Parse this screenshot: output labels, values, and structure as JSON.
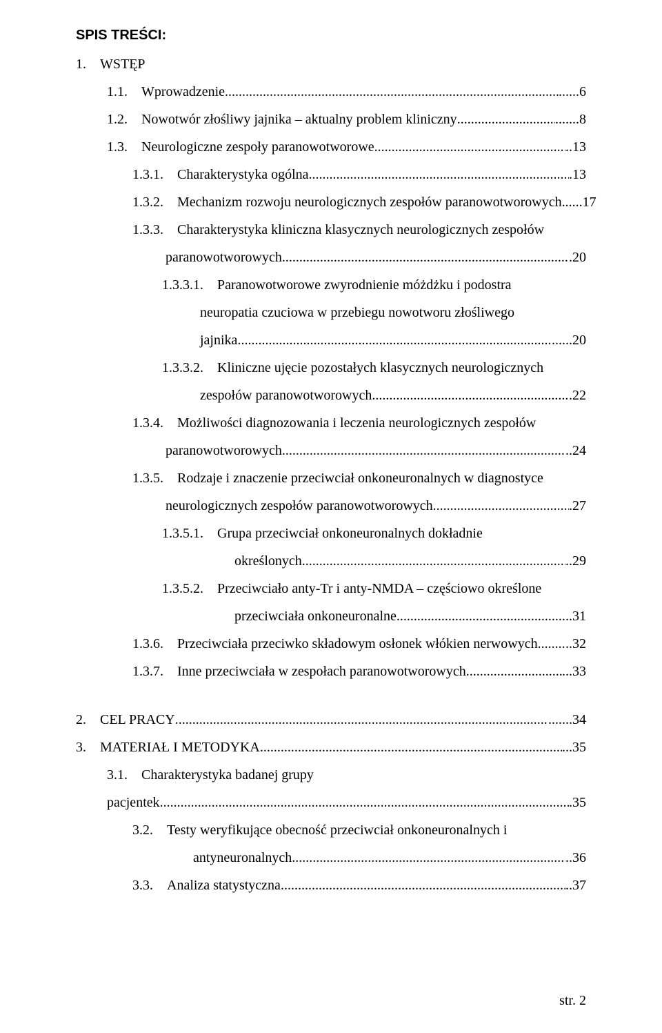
{
  "heading": "SPIS TREŚCI:",
  "colors": {
    "text": "#000000",
    "background": "#ffffff"
  },
  "fonts": {
    "heading_family": "Arial",
    "body_family": "Times New Roman",
    "body_size_pt": 15
  },
  "footer": "str. 2",
  "entries": [
    {
      "indent": "lvl1",
      "num": "1.",
      "text": "WSTĘP",
      "leader": "",
      "page": ""
    },
    {
      "indent": "lvl2",
      "num": "1.1.",
      "text": "Wprowadzenie",
      "leader": "...",
      "page": "......6"
    },
    {
      "indent": "lvl2",
      "num": "1.2.",
      "text": "Nowotwór złośliwy jajnika – aktualny problem kliniczny",
      "leader": ".",
      "page": ".......8"
    },
    {
      "indent": "lvl2",
      "num": "1.3.",
      "text": "Neurologiczne zespoły paranowotworowe",
      "leader": ".",
      "page": "..13"
    },
    {
      "indent": "lvl3",
      "num": "1.3.1.",
      "text": "Charakterystyka ogólna",
      "leader": ".",
      "page": ".13"
    },
    {
      "indent": "lvl3",
      "num": "1.3.2.",
      "text": "Mechanizm rozwoju neurologicznych zespołów paranowotworowych",
      "leader": ".",
      "page": "......17"
    },
    {
      "indent": "lvl3",
      "num": "1.3.3.",
      "text": "Charakterystyka kliniczna klasycznych neurologicznych zespołów",
      "leader": "",
      "page": ""
    },
    {
      "indent": "cont-lvl3",
      "num": "",
      "text": "paranowotworowych",
      "leader": ".",
      "page": ".20"
    },
    {
      "indent": "lvl4",
      "num": "1.3.3.1.",
      "text": "Paranowotworowe zwyrodnienie móżdżku i podostra",
      "leader": "",
      "page": ""
    },
    {
      "indent": "lvl5",
      "num": "",
      "text": "neuropatia czuciowa w przebiegu nowotworu złośliwego",
      "leader": "",
      "page": ""
    },
    {
      "indent": "lvl5",
      "num": "",
      "text": "jajnika",
      "leader": ".",
      "page": "......20"
    },
    {
      "indent": "lvl4",
      "num": "1.3.3.2.",
      "text": "Kliniczne ujęcie pozostałych klasycznych neurologicznych",
      "leader": "",
      "page": ""
    },
    {
      "indent": "lvl5",
      "num": "",
      "text": "zespołów paranowotworowych",
      "leader": ".",
      "page": ".22"
    },
    {
      "indent": "lvl3",
      "num": "1.3.4.",
      "text": "Możliwości diagnozowania i leczenia neurologicznych zespołów",
      "leader": "",
      "page": ""
    },
    {
      "indent": "cont-lvl3",
      "num": "",
      "text": "paranowotworowych",
      "leader": ".",
      "page": "..24"
    },
    {
      "indent": "lvl3",
      "num": "1.3.5.",
      "text": "Rodzaje i znaczenie przeciwciał onkoneuronalnych w diagnostyce",
      "leader": "",
      "page": ""
    },
    {
      "indent": "cont-lvl3",
      "num": "",
      "text": "neurologicznych zespołów paranowotworowych",
      "leader": ".",
      "page": ".27"
    },
    {
      "indent": "lvl4",
      "num": "1.3.5.1.",
      "text": "Grupa przeciwciał onkoneuronalnych dokładnie",
      "leader": "",
      "page": ""
    },
    {
      "indent": "cont-lvl5",
      "num": "",
      "text": "określonych",
      "leader": ".",
      "page": "..29"
    },
    {
      "indent": "lvl4",
      "num": "1.3.5.2.",
      "text": "Przeciwciało anty-Tr i anty-NMDA – częściowo określone",
      "leader": "",
      "page": ""
    },
    {
      "indent": "cont-lvl5",
      "num": "",
      "text": "przeciwciała onkoneuronalne",
      "leader": ".",
      "page": "..31"
    },
    {
      "indent": "lvl3",
      "num": "1.3.6.",
      "text": "Przeciwciała przeciwko składowym osłonek włókien nerwowych",
      "leader": ".",
      "page": "..32"
    },
    {
      "indent": "lvl3",
      "num": "1.3.7.",
      "text": "Inne przeciwciała w zespołach paranowotworowych",
      "leader": ".",
      "page": "...33"
    },
    {
      "gap": true
    },
    {
      "indent": "lvl1",
      "num": "2.",
      "text": "CEL PRACY",
      "leader": ".",
      "page": ".......34"
    },
    {
      "indent": "lvl1",
      "num": "3.",
      "text": "MATERIAŁ I METODYKA",
      "leader": ".",
      "page": "...35"
    },
    {
      "indent": "lvl2",
      "num": "3.1.",
      "text": "Charakterystyka badanej grupy",
      "leader": "",
      "page": ""
    },
    {
      "indent": "lvl2",
      "num": "",
      "text": "pacjentek",
      "leader": ".",
      "page": ".35"
    },
    {
      "indent": "lvl3",
      "num": "3.2.",
      "text": "Testy weryfikujące obecność przeciwciał onkoneuronalnych i",
      "leader": "",
      "page": ""
    },
    {
      "indent": "cont-lvl4",
      "num": "",
      "text": "antyneuronalnych",
      "leader": "....",
      "page": "..36"
    },
    {
      "indent": "lvl3",
      "num": "3.3.",
      "text": "Analiza statystyczna",
      "leader": ".",
      "page": "..37"
    }
  ]
}
